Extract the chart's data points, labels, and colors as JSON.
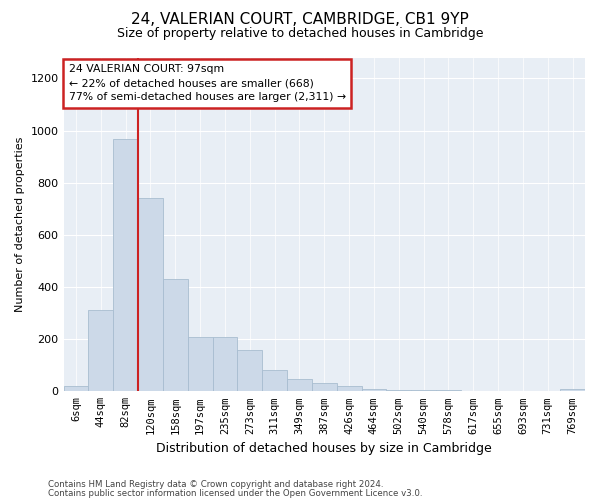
{
  "title1": "24, VALERIAN COURT, CAMBRIDGE, CB1 9YP",
  "title2": "Size of property relative to detached houses in Cambridge",
  "xlabel": "Distribution of detached houses by size in Cambridge",
  "ylabel": "Number of detached properties",
  "categories": [
    "6sqm",
    "44sqm",
    "82sqm",
    "120sqm",
    "158sqm",
    "197sqm",
    "235sqm",
    "273sqm",
    "311sqm",
    "349sqm",
    "387sqm",
    "426sqm",
    "464sqm",
    "502sqm",
    "540sqm",
    "578sqm",
    "617sqm",
    "655sqm",
    "693sqm",
    "731sqm",
    "769sqm"
  ],
  "values": [
    22,
    310,
    968,
    740,
    430,
    210,
    210,
    160,
    80,
    48,
    30,
    20,
    10,
    6,
    5,
    4,
    3,
    2,
    1,
    0,
    8
  ],
  "bar_color": "#ccd9e8",
  "bar_edge_color": "#a8bdd0",
  "property_line_x": 2.5,
  "property_line_color": "#cc2222",
  "annotation_text": "24 VALERIAN COURT: 97sqm\n← 22% of detached houses are smaller (668)\n77% of semi-detached houses are larger (2,311) →",
  "annotation_box_color": "white",
  "annotation_box_edge": "#cc2222",
  "ylim": [
    0,
    1280
  ],
  "yticks": [
    0,
    200,
    400,
    600,
    800,
    1000,
    1200
  ],
  "footer1": "Contains HM Land Registry data © Crown copyright and database right 2024.",
  "footer2": "Contains public sector information licensed under the Open Government Licence v3.0.",
  "bg_color": "#ffffff",
  "plot_bg_color": "#e8eef5",
  "grid_color": "#ffffff"
}
